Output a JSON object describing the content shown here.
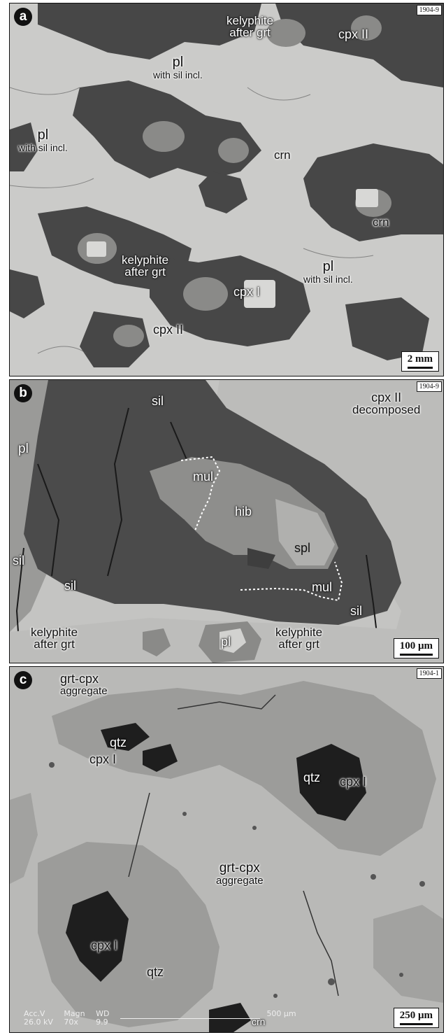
{
  "panels": [
    {
      "letter": "a",
      "sample": "1904-9",
      "scale": "2 mm",
      "labels": {
        "kelyphite1_l1": "kelyphite",
        "kelyphite1_l2": "after grt",
        "cpx2_top": "cpx II",
        "pl1": "pl",
        "pl1_sub": "with sil incl.",
        "pl2": "pl",
        "pl2_sub": "with sil incl.",
        "crn1": "crn",
        "crn2": "crn",
        "kelyphite2_l1": "kelyphite",
        "kelyphite2_l2": "after grt",
        "pl3": "pl",
        "pl3_sub": "with sil incl.",
        "cpx1": "cpx I",
        "cpx2_bottom": "cpx II"
      }
    },
    {
      "letter": "b",
      "sample": "1904-9",
      "scale": "100 μm",
      "labels": {
        "sil_top": "sil",
        "cpx2_l1": "cpx II",
        "cpx2_l2": "decomposed",
        "pl_left": "pl",
        "mul_top": "mul",
        "hib": "hib",
        "sil_left": "sil",
        "sil_mid": "sil",
        "spl": "spl",
        "mul_bottom": "mul",
        "sil_right": "sil",
        "kel_left_l1": "kelyphite",
        "kel_left_l2": "after grt",
        "pl_bottom": "pl",
        "kel_right_l1": "kelyphite",
        "kel_right_l2": "after grt"
      }
    },
    {
      "letter": "c",
      "sample": "1904-1",
      "scale": "250 μm",
      "labels": {
        "agg_top_l1": "grt-cpx",
        "agg_top_l2": "aggregate",
        "qtz1": "qtz",
        "cpx1_a": "cpx I",
        "qtz2": "qtz",
        "cpx1_b": "cpx I",
        "agg_mid_l1": "grt-cpx",
        "agg_mid_l2": "aggregate",
        "cpx1_c": "cpx I",
        "qtz3": "qtz",
        "crn": "crn"
      },
      "sem": {
        "accv_label": "Acc.V",
        "accv_value": "26.0 kV",
        "magn_label": "Magn",
        "magn_value": "70x",
        "wd_label": "WD",
        "wd_value": "9.9",
        "bar_label": "500 μm"
      }
    }
  ],
  "colors": {
    "pl_matrix": "#c9c9c7",
    "kelyphite": "#3a3a3a",
    "sillimanite": "#505050",
    "hibonite": "#8c8c8c",
    "cpx_ii": "#bdbdbb",
    "cpx_i": "#9e9e9c",
    "aggregate": "#b4b4b2"
  }
}
